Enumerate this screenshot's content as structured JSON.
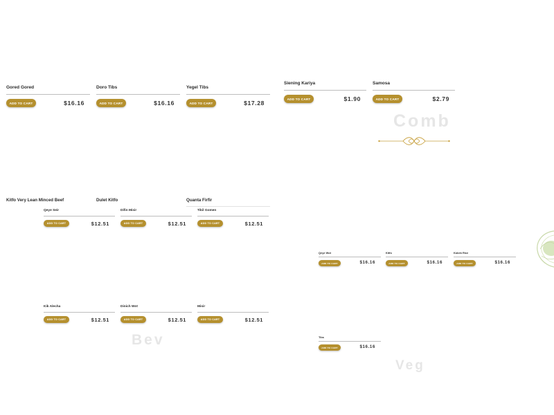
{
  "sections": {
    "combos_title": "Comb",
    "beverages_title": "Bev",
    "vegetarian_title": "Veg"
  },
  "button_label": "Add to cart",
  "colors": {
    "accent": "#b5902e",
    "rule": "#bdbdbd",
    "ghost_text": "#e6e6e6"
  },
  "cards_large": [
    {
      "name": "Gored Gored",
      "price": "$16.16"
    },
    {
      "name": "Doro Tibs",
      "price": "$16.16"
    },
    {
      "name": "Yegel Tibs",
      "price": "$17.28"
    },
    {
      "name": "Siening Kariya",
      "price": "$1.90"
    },
    {
      "name": "Samosa",
      "price": "$2.79"
    }
  ],
  "cards_medium_headings": [
    {
      "name": "Kitfo Very Lean Minced Beef"
    },
    {
      "name": "Dulet Kitfo"
    },
    {
      "name": "Quanta Firfir"
    }
  ],
  "cards_medium": [
    {
      "name": "Qeye Seir",
      "price": "$12.51"
    },
    {
      "name": "Difin Misir",
      "price": "$12.51"
    },
    {
      "name": "Tikil Gomen",
      "price": "$12.51"
    },
    {
      "name": "Kik Alecha",
      "price": "$12.51"
    },
    {
      "name": "Dinich Wot",
      "price": "$12.51"
    },
    {
      "name": "Misir",
      "price": "$12.51"
    }
  ],
  "cards_small": [
    {
      "name": "Qeye Wot",
      "price": "$16.16"
    },
    {
      "name": "Kitfo",
      "price": "$16.16"
    },
    {
      "name": "Kokeb Rice",
      "price": "$16.16"
    },
    {
      "name": "Tibs",
      "price": "$16.16"
    }
  ]
}
